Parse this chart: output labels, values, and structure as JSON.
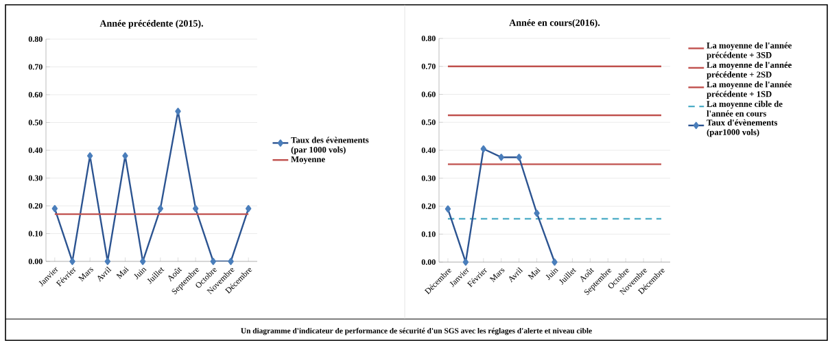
{
  "chart_data": [
    {
      "type": "line",
      "title": "Année précédente (2015).",
      "categories": [
        "Janvier",
        "Février",
        "Mars",
        "Avril",
        "Mai",
        "Juin",
        "Juillet",
        "Août",
        "Septembre",
        "Octobre",
        "Novembre",
        "Décembre"
      ],
      "series": [
        {
          "name": "Taux des évènements (par 1000 vols)",
          "color": "#2c5491",
          "marker": "diamond",
          "line_style": "solid",
          "values": [
            0.19,
            0,
            0.38,
            0,
            0.38,
            0,
            0.19,
            0.54,
            0.19,
            0,
            0,
            0.19
          ]
        },
        {
          "name": "Moyenne",
          "color": "#c0504d",
          "marker": "none",
          "line_style": "solid",
          "values": [
            0.17,
            0.17,
            0.17,
            0.17,
            0.17,
            0.17,
            0.17,
            0.17,
            0.17,
            0.17,
            0.17,
            0.17
          ]
        }
      ],
      "ylim": [
        0,
        0.8
      ],
      "yticks": [
        {
          "value": 0,
          "label": "0.00"
        },
        {
          "value": 0.1,
          "label": "0.10"
        },
        {
          "value": 0.2,
          "label": "0.20"
        },
        {
          "value": 0.3,
          "label": "0.30"
        },
        {
          "value": 0.4,
          "label": "0.40"
        },
        {
          "value": 0.5,
          "label": "0.50"
        },
        {
          "value": 0.6,
          "label": "0.60"
        },
        {
          "value": 0.7,
          "label": "0.70"
        },
        {
          "value": 0.8,
          "label": "0.80"
        }
      ],
      "grid": "y",
      "legend": "right"
    },
    {
      "type": "line",
      "title": "Année en cours(2016).",
      "categories": [
        "Décembre",
        "Janvier",
        "Février",
        "Mars",
        "Avril",
        "Mai",
        "Juin",
        "Juillet",
        "Août",
        "Septembre",
        "Octobre",
        "Novembre",
        "Décembre"
      ],
      "series": [
        {
          "name": "La moyenne de l'année précédente + 3SD",
          "color": "#c0504d",
          "marker": "none",
          "line_style": "solid",
          "values": [
            0.7,
            0.7,
            0.7,
            0.7,
            0.7,
            0.7,
            0.7,
            0.7,
            0.7,
            0.7,
            0.7,
            0.7,
            0.7
          ]
        },
        {
          "name": "La moyenne de l'année précédente + 2SD",
          "color": "#c0504d",
          "marker": "none",
          "line_style": "solid",
          "values": [
            0.525,
            0.525,
            0.525,
            0.525,
            0.525,
            0.525,
            0.525,
            0.525,
            0.525,
            0.525,
            0.525,
            0.525,
            0.525
          ]
        },
        {
          "name": "La moyenne de l'année précédente + 1SD",
          "color": "#c0504d",
          "marker": "none",
          "line_style": "solid",
          "values": [
            0.35,
            0.35,
            0.35,
            0.35,
            0.35,
            0.35,
            0.35,
            0.35,
            0.35,
            0.35,
            0.35,
            0.35,
            0.35
          ]
        },
        {
          "name": "La moyenne cible de l'année en cours",
          "color": "#4bacc6",
          "marker": "none",
          "line_style": "dashed",
          "values": [
            0.155,
            0.155,
            0.155,
            0.155,
            0.155,
            0.155,
            0.155,
            0.155,
            0.155,
            0.155,
            0.155,
            0.155,
            0.155
          ]
        },
        {
          "name": "Taux d'évènements (par1000 vols)",
          "color": "#2c5491",
          "marker": "diamond",
          "line_style": "solid",
          "values": [
            0.19,
            0,
            0.405,
            0.375,
            0.375,
            0.175,
            0,
            null,
            null,
            null,
            null,
            null,
            null
          ]
        }
      ],
      "ylim": [
        0,
        0.8
      ],
      "yticks": [
        {
          "value": 0,
          "label": "0.00"
        },
        {
          "value": 0.1,
          "label": "0.10"
        },
        {
          "value": 0.2,
          "label": "0.20"
        },
        {
          "value": 0.3,
          "label": "0.30"
        },
        {
          "value": 0.4,
          "label": "0.40"
        },
        {
          "value": 0.5,
          "label": "0.50"
        },
        {
          "value": 0.6,
          "label": "0.60"
        },
        {
          "value": 0.7,
          "label": "0.70"
        },
        {
          "value": 0.8,
          "label": "0.80"
        }
      ],
      "grid": "y",
      "legend": "right",
      "annotations": [
        "Un diagramme d'indicateur de performance de sécurité d'un SGS avec les réglages d'alerte et niveau cible"
      ]
    }
  ]
}
